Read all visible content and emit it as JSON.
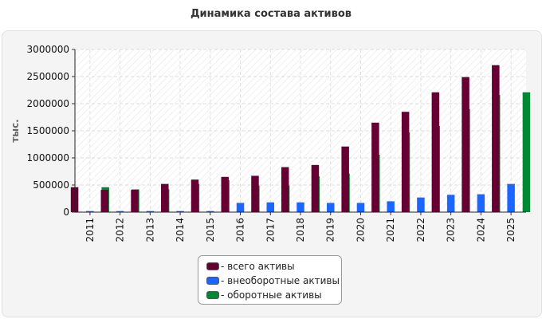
{
  "title": "Динамика состава активов",
  "chart_data": {
    "type": "bar",
    "ylabel": "тыс.",
    "xlabel": "",
    "ylim": [
      0,
      3000000
    ],
    "yticks": [
      "3000000",
      "2500000",
      "2000000",
      "1500000",
      "1000000",
      "500000",
      "0"
    ],
    "grid": true,
    "legend_position": "bottom",
    "categories": [
      "2011",
      "2012",
      "2013",
      "2014",
      "2015",
      "2016",
      "2017",
      "2018",
      "2019",
      "2020",
      "2021",
      "2022",
      "2023",
      "2024",
      "2025"
    ],
    "series": [
      {
        "name": "- всего активы",
        "color": "#660033",
        "values": [
          460000,
          410000,
          410000,
          520000,
          600000,
          650000,
          670000,
          830000,
          870000,
          1210000,
          1650000,
          1850000,
          2210000,
          2490000,
          2710000
        ]
      },
      {
        "name": "- внеоборотные активы",
        "color": "#1a66ff",
        "values": [
          20000,
          20000,
          20000,
          20000,
          20000,
          170000,
          180000,
          180000,
          170000,
          170000,
          200000,
          270000,
          320000,
          330000,
          520000
        ]
      },
      {
        "name": "- оборотные активы",
        "color": "#008833",
        "values": [
          460000,
          420000,
          420000,
          520000,
          590000,
          490000,
          490000,
          660000,
          710000,
          1060000,
          1470000,
          1590000,
          1900000,
          2160000,
          2210000
        ]
      }
    ]
  }
}
